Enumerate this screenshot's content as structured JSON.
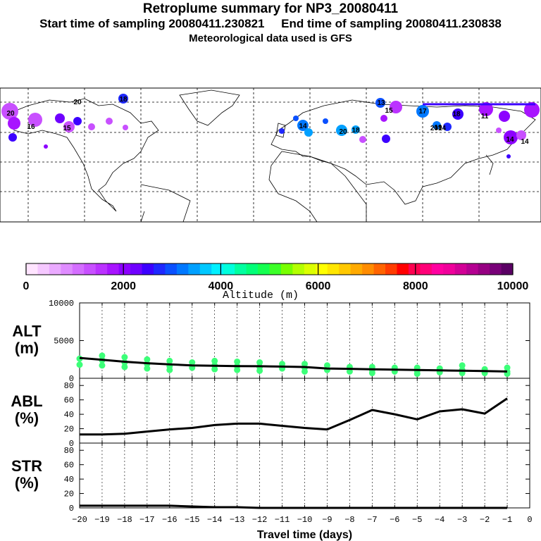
{
  "header": {
    "title": "Retroplume summary for NP3_20080411",
    "sampling": "Start time of sampling 20080411.230821     End time of sampling 20080411.230838",
    "met": "Meteorological data used is GFS"
  },
  "colorbar": {
    "tick_labels": [
      "0",
      "2000",
      "4000",
      "6000",
      "8000",
      "10000"
    ],
    "label": "Altitude (m)",
    "colors": [
      "#ffe4ff",
      "#f5c8ff",
      "#eaaaff",
      "#df8cff",
      "#d46eff",
      "#c850ff",
      "#bb32ff",
      "#a814ff",
      "#8c00ff",
      "#6f00ff",
      "#3c00ff",
      "#1e28ff",
      "#0a50ff",
      "#0078ff",
      "#00a0ff",
      "#00c8ff",
      "#00f0ff",
      "#00ffdc",
      "#00ffa0",
      "#00ff78",
      "#14ff50",
      "#3cff28",
      "#78ff00",
      "#b4ff00",
      "#dcff00",
      "#ffff00",
      "#ffe600",
      "#ffc800",
      "#ffaa00",
      "#ff8c00",
      "#ff6400",
      "#ff3c00",
      "#ff0000",
      "#ff0050",
      "#ff0078",
      "#ff00a0",
      "#f0009b",
      "#d20096",
      "#b40091",
      "#960082",
      "#780078",
      "#5a0064"
    ]
  },
  "map": {
    "labels": [
      "20",
      "18",
      "13",
      "15",
      "17",
      "18",
      "19",
      "20",
      "18",
      "16",
      "15",
      "14",
      "11",
      "2014",
      "20",
      "14",
      "14"
    ]
  },
  "chart_data": [
    {
      "type": "line",
      "panel": "ALT",
      "ylabel": "ALT (m)",
      "ylabel_line1": "ALT",
      "ylabel_line2": "(m)",
      "ylim": [
        0,
        10000
      ],
      "yticks": [
        "0",
        "5000",
        "10000"
      ],
      "x": [
        -20,
        -19,
        -18,
        -17,
        -16,
        -15,
        -14,
        -13,
        -12,
        -11,
        -10,
        -9,
        -8,
        -7,
        -6,
        -5,
        -4,
        -3,
        -2,
        -1
      ],
      "values": [
        2700,
        2450,
        2200,
        2000,
        1850,
        1700,
        1650,
        1620,
        1600,
        1550,
        1500,
        1300,
        1250,
        1200,
        1150,
        1100,
        1050,
        1000,
        950,
        900
      ],
      "point_color": "#3cff78",
      "scatter_x": [
        -20,
        -20,
        -19,
        -19,
        -19,
        -18,
        -18,
        -18,
        -17,
        -17,
        -17,
        -16,
        -16,
        -16,
        -15,
        -15,
        -14,
        -14,
        -14,
        -13,
        -13,
        -13,
        -12,
        -12,
        -12,
        -11,
        -11,
        -10,
        -10,
        -10,
        -9,
        -9,
        -8,
        -8,
        -7,
        -7,
        -7,
        -6,
        -6,
        -5,
        -5,
        -5,
        -4,
        -4,
        -3,
        -3,
        -3,
        -2,
        -2,
        -1,
        -1,
        -1
      ],
      "scatter_y": [
        2600,
        1800,
        3000,
        2400,
        1700,
        2800,
        2100,
        1500,
        2500,
        1900,
        1300,
        2300,
        1600,
        1100,
        2100,
        1400,
        2300,
        1700,
        1200,
        2200,
        1600,
        1100,
        2100,
        1500,
        1000,
        1900,
        1300,
        1900,
        1400,
        900,
        1700,
        1100,
        1500,
        900,
        1500,
        1100,
        700,
        1400,
        900,
        1400,
        1000,
        600,
        1300,
        800,
        1700,
        1100,
        700,
        1200,
        700,
        1400,
        900,
        600
      ]
    },
    {
      "type": "line",
      "panel": "ABL",
      "ylabel": "ABL (%)",
      "ylabel_line1": "ABL",
      "ylabel_line2": "(%)",
      "ylim": [
        0,
        90
      ],
      "yticks": [
        "0",
        "20",
        "40",
        "60",
        "80"
      ],
      "x": [
        -20,
        -19,
        -18,
        -17,
        -16,
        -15,
        -14,
        -13,
        -12,
        -11,
        -10,
        -9,
        -8,
        -7,
        -6,
        -5,
        -4,
        -3,
        -2,
        -1
      ],
      "values": [
        12,
        12,
        13,
        16,
        19,
        21,
        25,
        27,
        27,
        24,
        21,
        19,
        32,
        46,
        40,
        33,
        44,
        47,
        41,
        62
      ]
    },
    {
      "type": "line",
      "panel": "STR",
      "ylabel": "STR (%)",
      "ylabel_line1": "STR",
      "ylabel_line2": "(%)",
      "ylim": [
        0,
        90
      ],
      "yticks": [
        "0",
        "20",
        "40",
        "60",
        "80"
      ],
      "x": [
        -20,
        -19,
        -18,
        -17,
        -16,
        -15,
        -14,
        -13,
        -12,
        -11,
        -10,
        -9,
        -8,
        -7,
        -6,
        -5,
        -4,
        -3,
        -2,
        -1
      ],
      "values": [
        3,
        3,
        3,
        3,
        3,
        2,
        1,
        1,
        0,
        0,
        0,
        0,
        0,
        0,
        0,
        0,
        0,
        0,
        0,
        0
      ],
      "xlabel": "Travel time (days)",
      "xtick_labels": [
        "−20",
        "−19",
        "−18",
        "−17",
        "−16",
        "−15",
        "−14",
        "−13",
        "−12",
        "−11",
        "−10",
        "−9",
        "−8",
        "−7",
        "−6",
        "−5",
        "−4",
        "−3",
        "−2",
        "−1",
        "0"
      ]
    }
  ]
}
